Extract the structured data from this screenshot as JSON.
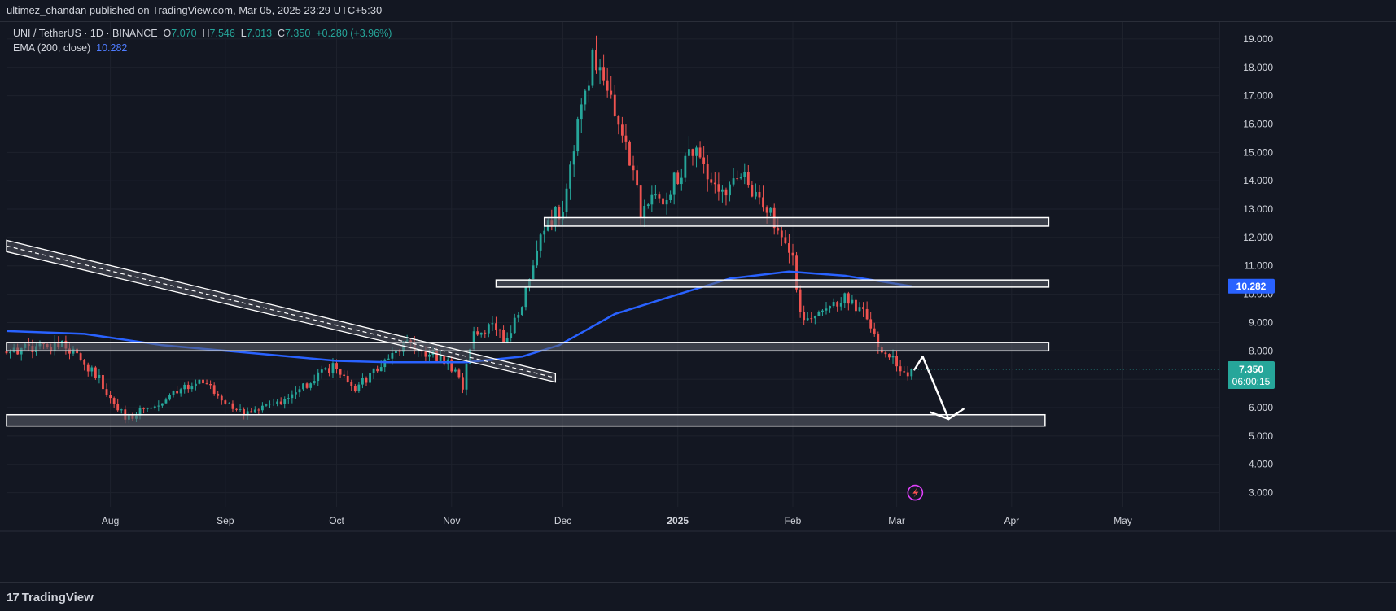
{
  "header": {
    "publisher_line": "ultimez_chandan published on TradingView.com, Mar 05, 2025 23:29 UTC+5:30"
  },
  "legend": {
    "symbol": "UNI / TetherUS · 1D · BINANCE",
    "o_label": "O",
    "o_value": "7.070",
    "h_label": "H",
    "h_value": "7.546",
    "l_label": "L",
    "l_value": "7.013",
    "c_label": "C",
    "c_value": "7.350",
    "change": "+0.280 (+3.96%)",
    "ema_label": "EMA (200, close)",
    "ema_value": "10.282"
  },
  "footer": {
    "brand": "TradingView",
    "logo_mark": "17"
  },
  "colors": {
    "background": "#131722",
    "up": "#26a69a",
    "down": "#ef5350",
    "ema": "#2962ff",
    "grid": "#1e222d",
    "zone_fill": "#5d606b",
    "zone_stroke": "#ffffff",
    "text": "#d1d4dc"
  },
  "chart_data": {
    "type": "candlestick",
    "symbol": "UNI / TetherUS",
    "interval": "1D",
    "exchange": "BINANCE",
    "y_ticks": [
      3.0,
      4.0,
      5.0,
      6.0,
      7.0,
      8.0,
      9.0,
      10.0,
      11.0,
      12.0,
      13.0,
      14.0,
      15.0,
      16.0,
      17.0,
      18.0,
      19.0
    ],
    "y_tick_labels": [
      "3.000",
      "4.000",
      "5.000",
      "6.000",
      "",
      "8.000",
      "9.000",
      "10.000",
      "11.000",
      "12.000",
      "13.000",
      "14.000",
      "15.000",
      "16.000",
      "17.000",
      "18.000",
      "19.000"
    ],
    "x_ticks": [
      {
        "label": "Aug",
        "date": "2024-08-01"
      },
      {
        "label": "Sep",
        "date": "2024-09-01"
      },
      {
        "label": "Oct",
        "date": "2024-10-01"
      },
      {
        "label": "Nov",
        "date": "2024-11-01"
      },
      {
        "label": "Dec",
        "date": "2024-12-01"
      },
      {
        "label": "2025",
        "date": "2025-01-01"
      },
      {
        "label": "Feb",
        "date": "2025-02-01"
      },
      {
        "label": "Mar",
        "date": "2025-03-01"
      },
      {
        "label": "Apr",
        "date": "2025-04-01"
      },
      {
        "label": "May",
        "date": "2025-05-01"
      }
    ],
    "x_range": [
      "2024-07-04",
      "2025-05-27"
    ],
    "y_range": [
      2.5,
      19.6
    ],
    "price_path": [
      [
        "2024-07-04",
        8.0
      ],
      [
        "2024-07-20",
        8.2
      ],
      [
        "2024-07-28",
        7.2
      ],
      [
        "2024-08-05",
        5.6
      ],
      [
        "2024-08-15",
        6.2
      ],
      [
        "2024-08-25",
        7.0
      ],
      [
        "2024-09-06",
        5.7
      ],
      [
        "2024-09-20",
        6.5
      ],
      [
        "2024-09-30",
        7.5
      ],
      [
        "2024-10-05",
        6.6
      ],
      [
        "2024-10-14",
        7.6
      ],
      [
        "2024-10-20",
        8.3
      ],
      [
        "2024-10-31",
        7.6
      ],
      [
        "2024-11-04",
        6.8
      ],
      [
        "2024-11-07",
        8.5
      ],
      [
        "2024-11-12",
        9.0
      ],
      [
        "2024-11-16",
        8.3
      ],
      [
        "2024-11-22",
        10.5
      ],
      [
        "2024-11-26",
        12.5
      ],
      [
        "2024-12-01",
        13.0
      ],
      [
        "2024-12-06",
        16.5
      ],
      [
        "2024-12-09",
        18.4
      ],
      [
        "2024-12-13",
        17.3
      ],
      [
        "2024-12-18",
        15.5
      ],
      [
        "2024-12-22",
        13.0
      ],
      [
        "2024-12-29",
        13.5
      ],
      [
        "2025-01-06",
        15.3
      ],
      [
        "2025-01-12",
        13.3
      ],
      [
        "2025-01-18",
        14.3
      ],
      [
        "2025-01-26",
        12.8
      ],
      [
        "2025-02-01",
        11.5
      ],
      [
        "2025-02-03",
        9.2
      ],
      [
        "2025-02-08",
        9.3
      ],
      [
        "2025-02-16",
        9.9
      ],
      [
        "2025-02-20",
        9.3
      ],
      [
        "2025-02-24",
        8.2
      ],
      [
        "2025-03-01",
        7.6
      ],
      [
        "2025-03-04",
        7.07
      ],
      [
        "2025-03-05",
        7.35
      ]
    ],
    "last_price": 7.35,
    "ema": {
      "name": "EMA (200, close)",
      "last_value": 10.282,
      "points": [
        [
          "2024-07-04",
          8.7
        ],
        [
          "2024-07-25",
          8.6
        ],
        [
          "2024-08-15",
          8.2
        ],
        [
          "2024-09-10",
          7.9
        ],
        [
          "2024-10-01",
          7.65
        ],
        [
          "2024-10-15",
          7.6
        ],
        [
          "2024-11-05",
          7.6
        ],
        [
          "2024-11-20",
          7.8
        ],
        [
          "2024-11-30",
          8.2
        ],
        [
          "2024-12-15",
          9.3
        ],
        [
          "2024-12-31",
          9.95
        ],
        [
          "2025-01-15",
          10.55
        ],
        [
          "2025-01-31",
          10.8
        ],
        [
          "2025-02-15",
          10.65
        ],
        [
          "2025-03-05",
          10.28
        ]
      ]
    },
    "zones": [
      {
        "start": "2024-11-26",
        "end": "2025-04-11",
        "low": 12.4,
        "high": 12.7
      },
      {
        "start": "2024-11-13",
        "end": "2025-04-11",
        "low": 10.25,
        "high": 10.5
      },
      {
        "start": "2024-07-04",
        "end": "2025-04-11",
        "low": 8.0,
        "high": 8.3
      },
      {
        "start": "2024-07-04",
        "end": "2025-04-10",
        "low": 5.35,
        "high": 5.75
      }
    ],
    "descending_channel": {
      "start": {
        "date": "2024-07-04",
        "upper": 11.9,
        "lower": 11.5
      },
      "end": {
        "date": "2024-11-29",
        "upper": 7.2,
        "lower": 6.9
      }
    },
    "projection_arrow": [
      [
        "2025-03-08",
        7.8
      ],
      [
        "2025-03-15",
        5.6
      ],
      [
        "2025-03-19",
        5.95
      ]
    ],
    "current_price_label": {
      "price": "7.350",
      "countdown": "06:00:15"
    },
    "ema_price_label": "10.282",
    "grid": true
  }
}
